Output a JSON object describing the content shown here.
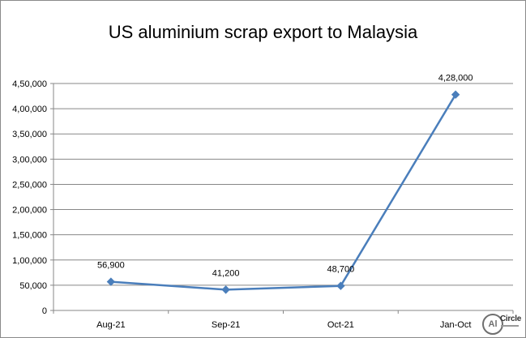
{
  "chart_data": {
    "type": "line",
    "title": "US aluminium scrap export to Malaysia",
    "categories": [
      "Aug-21",
      "Sep-21",
      "Oct-21",
      "Jan-Oct"
    ],
    "series": [
      {
        "values": [
          56900,
          41200,
          48700,
          428000
        ]
      }
    ],
    "data_labels": [
      "56,900",
      "41,200",
      "48,700",
      "4,28,000"
    ],
    "ylim": [
      0,
      450000
    ],
    "yticks": [
      0,
      50000,
      100000,
      150000,
      200000,
      250000,
      300000,
      350000,
      400000,
      450000
    ],
    "ytick_labels": [
      "0",
      "50,000",
      "1,00,000",
      "1,50,000",
      "2,00,000",
      "2,50,000",
      "3,00,000",
      "3,50,000",
      "4,00,000",
      "4,50,000"
    ],
    "grid": true,
    "marker": "diamond",
    "line_color": "#4a7ebb",
    "grid_color": "#878787"
  },
  "logo": {
    "badge_text": "Al",
    "word": "Circle"
  }
}
